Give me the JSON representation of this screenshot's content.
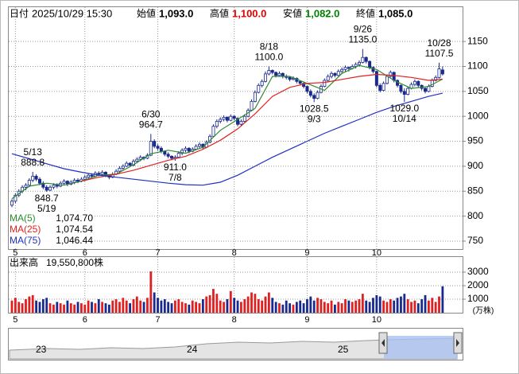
{
  "chart_data": {
    "type": "candlestick",
    "header": {
      "date_label": "日付",
      "date": "2025/10/29 15:30",
      "fields": [
        {
          "name": "始値",
          "value": 1093,
          "label": "1,093.0",
          "color": "#000000"
        },
        {
          "name": "高値",
          "value": 1100,
          "label": "1,100.0",
          "color": "#e00000"
        },
        {
          "name": "安値",
          "value": 1082,
          "label": "1,082.0",
          "color": "#008000"
        },
        {
          "name": "終値",
          "value": 1085,
          "label": "1,085.0",
          "color": "#000000"
        }
      ]
    },
    "ylim": [
      734,
      1214
    ],
    "yticks": [
      750,
      800,
      850,
      900,
      950,
      1000,
      1050,
      1100,
      1150
    ],
    "xticks": [
      {
        "value": 1,
        "label": "5"
      },
      {
        "value": 21,
        "label": "6"
      },
      {
        "value": 42,
        "label": "7"
      },
      {
        "value": 64,
        "label": "8"
      },
      {
        "value": 85,
        "label": "9"
      },
      {
        "value": 105,
        "label": "10"
      }
    ],
    "grid": true,
    "up_color": "#ffffff",
    "down_color": "#1a2a8c",
    "outline_color": "#1a2a8c",
    "candles": [
      [
        822,
        834,
        818,
        830
      ],
      [
        830,
        846,
        826,
        842
      ],
      [
        842,
        854,
        838,
        850
      ],
      [
        850,
        862,
        846,
        858
      ],
      [
        858,
        866,
        852,
        862
      ],
      [
        862,
        876,
        858,
        872
      ],
      [
        872,
        888.8,
        868,
        880
      ],
      [
        880,
        884,
        870,
        874
      ],
      [
        874,
        878,
        862,
        866
      ],
      [
        866,
        870,
        854,
        858
      ],
      [
        858,
        862,
        848.7,
        852
      ],
      [
        852,
        862,
        850,
        858
      ],
      [
        858,
        866,
        854,
        862
      ],
      [
        862,
        866,
        856,
        860
      ],
      [
        860,
        870,
        858,
        866
      ],
      [
        866,
        874,
        862,
        870
      ],
      [
        870,
        872,
        860,
        864
      ],
      [
        864,
        872,
        862,
        868
      ],
      [
        868,
        876,
        864,
        872
      ],
      [
        872,
        876,
        866,
        870
      ],
      [
        870,
        878,
        868,
        874
      ],
      [
        874,
        882,
        870,
        878
      ],
      [
        878,
        886,
        874,
        882
      ],
      [
        882,
        886,
        876,
        880
      ],
      [
        880,
        890,
        878,
        886
      ],
      [
        886,
        890,
        880,
        884
      ],
      [
        884,
        892,
        882,
        888
      ],
      [
        888,
        890,
        878,
        882
      ],
      [
        882,
        884,
        874,
        878
      ],
      [
        878,
        888,
        876,
        884
      ],
      [
        884,
        894,
        882,
        890
      ],
      [
        890,
        900,
        886,
        896
      ],
      [
        896,
        904,
        892,
        900
      ],
      [
        900,
        910,
        898,
        906
      ],
      [
        906,
        908,
        898,
        902
      ],
      [
        902,
        914,
        900,
        910
      ],
      [
        910,
        918,
        906,
        914
      ],
      [
        914,
        922,
        910,
        918
      ],
      [
        918,
        920,
        912,
        916
      ],
      [
        916,
        926,
        914,
        922
      ],
      [
        922,
        964.7,
        920,
        950
      ],
      [
        950,
        954,
        936,
        940
      ],
      [
        940,
        944,
        932,
        936
      ],
      [
        936,
        940,
        926,
        930
      ],
      [
        930,
        932,
        920,
        924
      ],
      [
        924,
        928,
        916,
        920
      ],
      [
        920,
        922,
        912,
        916
      ],
      [
        916,
        922,
        911,
        918
      ],
      [
        918,
        930,
        916,
        926
      ],
      [
        926,
        936,
        922,
        932
      ],
      [
        932,
        940,
        928,
        936
      ],
      [
        936,
        938,
        926,
        930
      ],
      [
        930,
        938,
        928,
        934
      ],
      [
        934,
        944,
        932,
        940
      ],
      [
        940,
        948,
        936,
        944
      ],
      [
        944,
        946,
        934,
        938
      ],
      [
        938,
        952,
        936,
        948
      ],
      [
        948,
        964,
        946,
        960
      ],
      [
        960,
        984,
        958,
        980
      ],
      [
        980,
        994,
        976,
        990
      ],
      [
        990,
        998,
        986,
        994
      ],
      [
        994,
        1002,
        990,
        998
      ],
      [
        998,
        1000,
        988,
        992
      ],
      [
        992,
        1004,
        990,
        1000
      ],
      [
        1000,
        1002,
        992,
        996
      ],
      [
        996,
        998,
        980,
        984
      ],
      [
        984,
        994,
        980,
        990
      ],
      [
        990,
        1004,
        988,
        1000
      ],
      [
        1000,
        1016,
        998,
        1012
      ],
      [
        1012,
        1034,
        1010,
        1030
      ],
      [
        1030,
        1052,
        1028,
        1048
      ],
      [
        1048,
        1066,
        1046,
        1062
      ],
      [
        1062,
        1074,
        1058,
        1070
      ],
      [
        1070,
        1090,
        1068,
        1085
      ],
      [
        1085,
        1100,
        1082,
        1092
      ],
      [
        1092,
        1094,
        1084,
        1088
      ],
      [
        1088,
        1090,
        1078,
        1082
      ],
      [
        1082,
        1090,
        1080,
        1086
      ],
      [
        1086,
        1088,
        1076,
        1080
      ],
      [
        1080,
        1084,
        1074,
        1078
      ],
      [
        1078,
        1080,
        1070,
        1074
      ],
      [
        1074,
        1080,
        1072,
        1076
      ],
      [
        1076,
        1078,
        1066,
        1070
      ],
      [
        1070,
        1072,
        1062,
        1066
      ],
      [
        1066,
        1068,
        1056,
        1060
      ],
      [
        1060,
        1062,
        1046,
        1050
      ],
      [
        1050,
        1054,
        1038,
        1042
      ],
      [
        1042,
        1046,
        1028.5,
        1036
      ],
      [
        1036,
        1052,
        1034,
        1048
      ],
      [
        1048,
        1064,
        1046,
        1060
      ],
      [
        1060,
        1076,
        1058,
        1072
      ],
      [
        1072,
        1084,
        1068,
        1080
      ],
      [
        1080,
        1090,
        1076,
        1086
      ],
      [
        1086,
        1088,
        1078,
        1082
      ],
      [
        1082,
        1094,
        1080,
        1090
      ],
      [
        1090,
        1098,
        1086,
        1094
      ],
      [
        1094,
        1102,
        1090,
        1098
      ],
      [
        1098,
        1100,
        1090,
        1096
      ],
      [
        1096,
        1104,
        1094,
        1100
      ],
      [
        1100,
        1108,
        1096,
        1104
      ],
      [
        1104,
        1112,
        1100,
        1108
      ],
      [
        1108,
        1135,
        1106,
        1118
      ],
      [
        1118,
        1120,
        1106,
        1110
      ],
      [
        1110,
        1112,
        1094,
        1098
      ],
      [
        1098,
        1100,
        1086,
        1090
      ],
      [
        1090,
        1092,
        1058,
        1062
      ],
      [
        1062,
        1066,
        1048,
        1052
      ],
      [
        1052,
        1070,
        1050,
        1066
      ],
      [
        1066,
        1084,
        1064,
        1080
      ],
      [
        1080,
        1092,
        1078,
        1088
      ],
      [
        1088,
        1090,
        1068,
        1072
      ],
      [
        1072,
        1074,
        1058,
        1062
      ],
      [
        1062,
        1064,
        1046,
        1050
      ],
      [
        1050,
        1056,
        1029,
        1044
      ],
      [
        1044,
        1060,
        1042,
        1056
      ],
      [
        1056,
        1068,
        1054,
        1064
      ],
      [
        1064,
        1074,
        1060,
        1070
      ],
      [
        1070,
        1072,
        1058,
        1062
      ],
      [
        1062,
        1064,
        1052,
        1056
      ],
      [
        1056,
        1058,
        1046,
        1050
      ],
      [
        1050,
        1064,
        1048,
        1060
      ],
      [
        1060,
        1076,
        1058,
        1072
      ],
      [
        1072,
        1082,
        1070,
        1078
      ],
      [
        1078,
        1107.5,
        1076,
        1095
      ],
      [
        1093,
        1100,
        1082,
        1085
      ]
    ],
    "annotations": [
      {
        "date": "5/13",
        "value": 888.8
      },
      {
        "date": "5/19",
        "value": 848.7
      },
      {
        "date": "6/30",
        "value": 964.7
      },
      {
        "date": "7/8",
        "value": 911,
        "label": "911.0"
      },
      {
        "date": "8/18",
        "value": 1100,
        "label": "1100.0"
      },
      {
        "date": "9/3",
        "value": 1028.5
      },
      {
        "date": "9/26",
        "value": 1135,
        "label": "1135.0"
      },
      {
        "date": "10/14",
        "value": 1029,
        "label": "1029.0"
      },
      {
        "date": "10/28",
        "value": 1107.5
      }
    ],
    "series": [
      {
        "name": "MA(5)",
        "color": "#2e8b2e",
        "latest": {
          "value": 1074.7,
          "label": "1,074.70"
        },
        "x": [
          0,
          5,
          10,
          15,
          20,
          25,
          30,
          35,
          40,
          45,
          50,
          55,
          60,
          65,
          70,
          75,
          80,
          85,
          90,
          95,
          100,
          105,
          110,
          115,
          120,
          124
        ],
        "values": [
          835,
          860,
          866,
          862,
          870,
          882,
          884,
          903,
          925,
          932,
          926,
          938,
          972,
          994,
          1016,
          1080,
          1080,
          1066,
          1052,
          1086,
          1102,
          1094,
          1072,
          1056,
          1060,
          1074.7
        ]
      },
      {
        "name": "MA(25)",
        "color": "#e02020",
        "latest": {
          "value": 1074.54,
          "label": "1,074.54"
        },
        "x": [
          20,
          25,
          30,
          35,
          40,
          45,
          50,
          55,
          60,
          65,
          70,
          75,
          80,
          85,
          90,
          95,
          100,
          105,
          110,
          115,
          120,
          124
        ],
        "values": [
          870,
          878,
          884,
          892,
          902,
          912,
          920,
          934,
          952,
          975,
          1005,
          1040,
          1058,
          1066,
          1068,
          1074,
          1080,
          1084,
          1082,
          1078,
          1072,
          1074.54
        ]
      },
      {
        "name": "MA(75)",
        "color": "#2030c0",
        "latest": {
          "value": 1046.44,
          "label": "1,046.44"
        },
        "x": [
          0,
          5,
          10,
          15,
          20,
          25,
          30,
          35,
          40,
          45,
          50,
          55,
          60,
          65,
          70,
          75,
          80,
          85,
          90,
          95,
          100,
          105,
          110,
          115,
          120,
          124
        ],
        "values": [
          925,
          915,
          905,
          895,
          888,
          882,
          878,
          874,
          870,
          866,
          863,
          862,
          868,
          882,
          900,
          918,
          934,
          950,
          966,
          980,
          994,
          1008,
          1020,
          1030,
          1040,
          1046.44
        ]
      }
    ],
    "volume": {
      "label": "出来高",
      "total": {
        "value": 19550800,
        "label": "19,550,800株"
      },
      "unit": "(万株)",
      "ylim": [
        0,
        3235
      ],
      "yticks": [
        1000,
        2000,
        3000
      ],
      "up_color": "#e02020",
      "down_color": "#1a2a8c",
      "values": [
        900,
        1100,
        800,
        700,
        1000,
        1200,
        1300,
        900,
        800,
        1000,
        1100,
        700,
        600,
        800,
        700,
        600,
        900,
        700,
        600,
        800,
        700,
        600,
        900,
        800,
        700,
        1000,
        800,
        700,
        600,
        900,
        1000,
        800,
        1100,
        900,
        700,
        1000,
        1200,
        900,
        800,
        1100,
        3050,
        1500,
        1100,
        900,
        1000,
        800,
        700,
        900,
        1000,
        800,
        700,
        600,
        900,
        800,
        700,
        1000,
        1200,
        1300,
        1760,
        1400,
        900,
        800,
        1000,
        1600,
        1100,
        900,
        800,
        1000,
        1200,
        1500,
        1400,
        1000,
        900,
        1200,
        1500,
        1100,
        800,
        700,
        600,
        900,
        700,
        600,
        800,
        900,
        700,
        1000,
        1200,
        900,
        1100,
        1000,
        800,
        700,
        900,
        600,
        800,
        700,
        1000,
        900,
        800,
        900,
        1000,
        1400,
        900,
        800,
        1100,
        1300,
        1200,
        900,
        800,
        1000,
        900,
        1100,
        1200,
        1400,
        1000,
        800,
        900,
        700,
        1000,
        1300,
        900,
        1100,
        800,
        1200,
        1955.08
      ]
    },
    "navigator": {
      "labels": [
        "23",
        "24",
        "25"
      ]
    }
  }
}
